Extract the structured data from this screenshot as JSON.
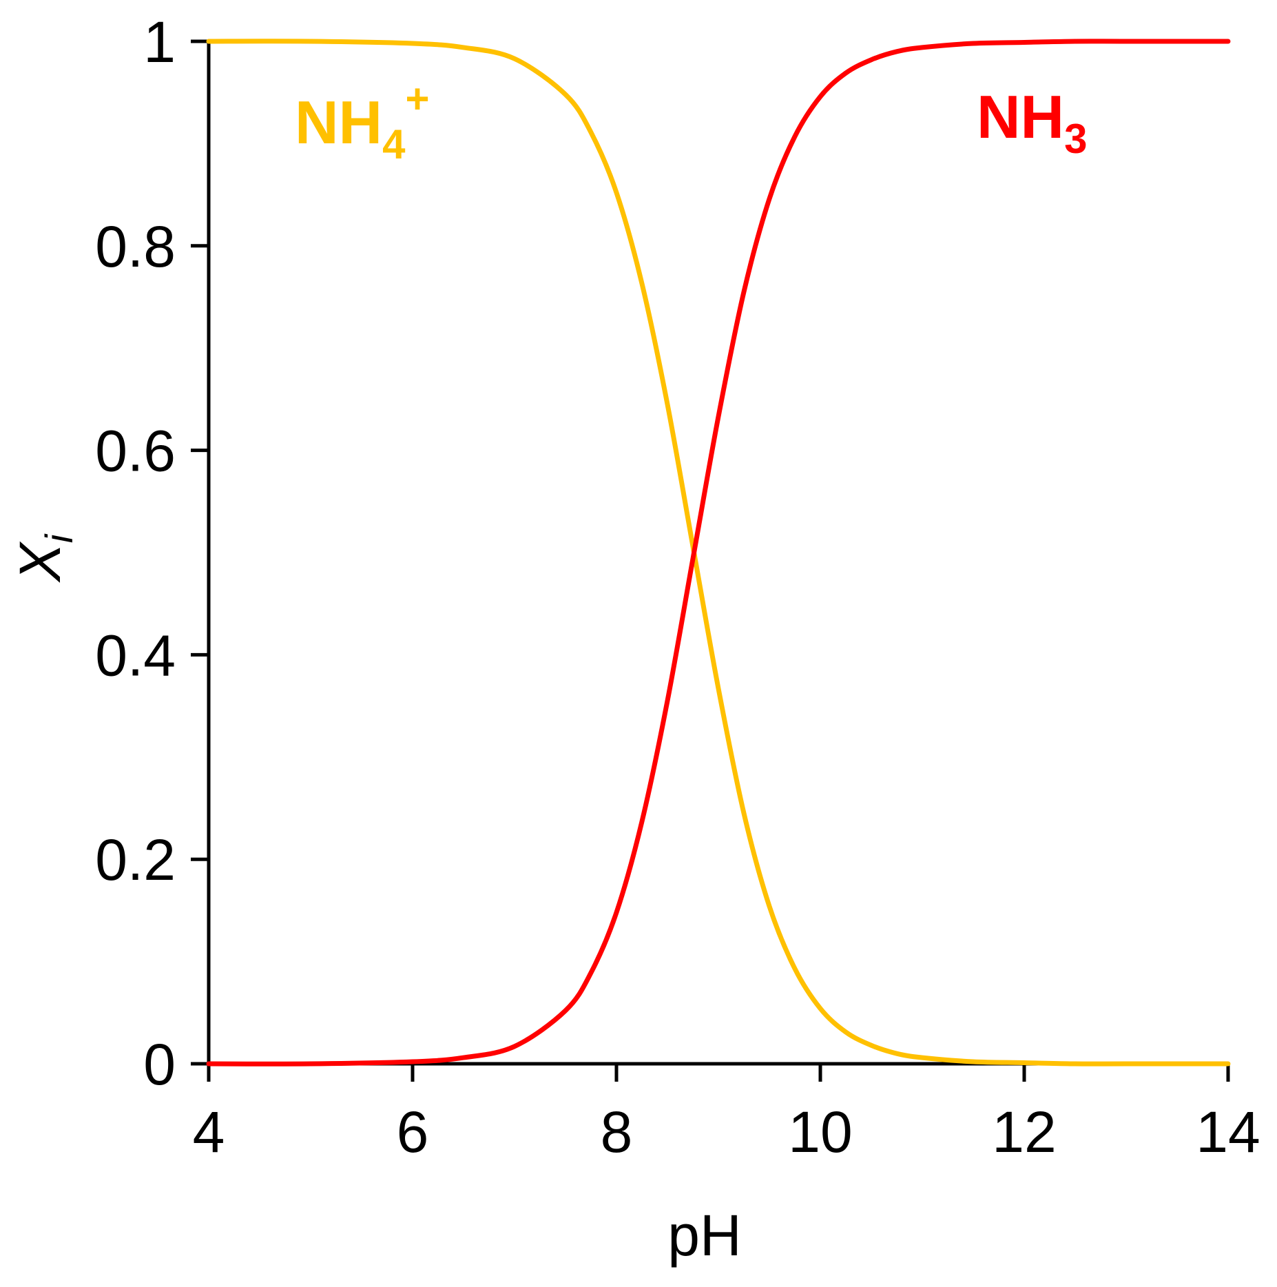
{
  "chart_data": {
    "type": "line",
    "xlabel": "pH",
    "ylabel": {
      "main": "X",
      "sub": "i"
    },
    "xlim": [
      4,
      14
    ],
    "ylim": [
      0,
      1
    ],
    "xticks": [
      4,
      6,
      8,
      10,
      12,
      14
    ],
    "xtick_labels": [
      "4",
      "6",
      "8",
      "10",
      "12",
      "14"
    ],
    "yticks": [
      0,
      0.2,
      0.4,
      0.6,
      0.8,
      1
    ],
    "ytick_labels": [
      "0",
      "0.2",
      "0.4",
      "0.6",
      "0.8",
      "1"
    ],
    "grid": false,
    "legend": "none",
    "x": [
      4,
      5,
      6,
      6.5,
      7,
      7.5,
      7.75,
      8,
      8.25,
      8.5,
      8.75,
      9,
      9.25,
      9.5,
      9.75,
      10,
      10.25,
      10.5,
      10.75,
      11,
      11.5,
      12,
      12.5,
      13,
      14
    ],
    "series": [
      {
        "name": "NH4+",
        "label": {
          "base": "NH",
          "sub": "4",
          "sup": "+"
        },
        "color": "#FFC000",
        "values": [
          1.0,
          1.0,
          0.998,
          0.994,
          0.983,
          0.948,
          0.911,
          0.852,
          0.763,
          0.645,
          0.506,
          0.367,
          0.245,
          0.154,
          0.093,
          0.054,
          0.031,
          0.018,
          0.01,
          0.006,
          0.002,
          0.001,
          0.0,
          0.0,
          0.0
        ]
      },
      {
        "name": "NH3",
        "label": {
          "base": "NH",
          "sub": "3",
          "sup": ""
        },
        "color": "#FF0000",
        "values": [
          0.0,
          0.0,
          0.002,
          0.006,
          0.017,
          0.052,
          0.089,
          0.148,
          0.237,
          0.355,
          0.494,
          0.633,
          0.755,
          0.846,
          0.907,
          0.946,
          0.969,
          0.982,
          0.99,
          0.994,
          0.998,
          0.999,
          1.0,
          1.0,
          1.0
        ]
      }
    ]
  }
}
